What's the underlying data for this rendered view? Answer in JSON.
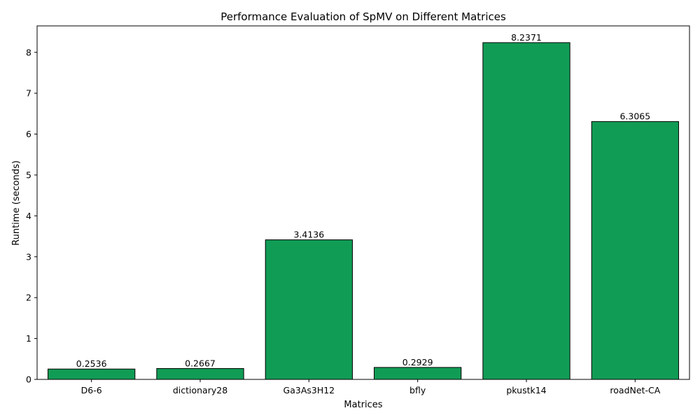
{
  "chart_data": {
    "type": "bar",
    "title": "Performance Evaluation of SpMV on Different Matrices",
    "xlabel": "Matrices",
    "ylabel": "Runtime (seconds)",
    "categories": [
      "D6-6",
      "dictionary28",
      "Ga3As3H12",
      "bfly",
      "pkustk14",
      "roadNet-CA"
    ],
    "values": [
      0.2536,
      0.2667,
      3.4136,
      0.2929,
      8.2371,
      6.3065
    ],
    "value_labels": [
      "0.2536",
      "0.2667",
      "3.4136",
      "0.2929",
      "8.2371",
      "6.3065"
    ],
    "ylim": [
      0,
      8.6465
    ],
    "yticks": [
      0,
      1,
      2,
      3,
      4,
      5,
      6,
      7,
      8
    ],
    "ytick_labels": [
      "0",
      "1",
      "2",
      "3",
      "4",
      "5",
      "6",
      "7",
      "8"
    ],
    "grid": false,
    "legend": "none",
    "colors": {
      "bar_fill": "#119c55",
      "bar_edge": "#000000",
      "axis": "#000000",
      "text": "#000000",
      "background": "#ffffff"
    }
  }
}
